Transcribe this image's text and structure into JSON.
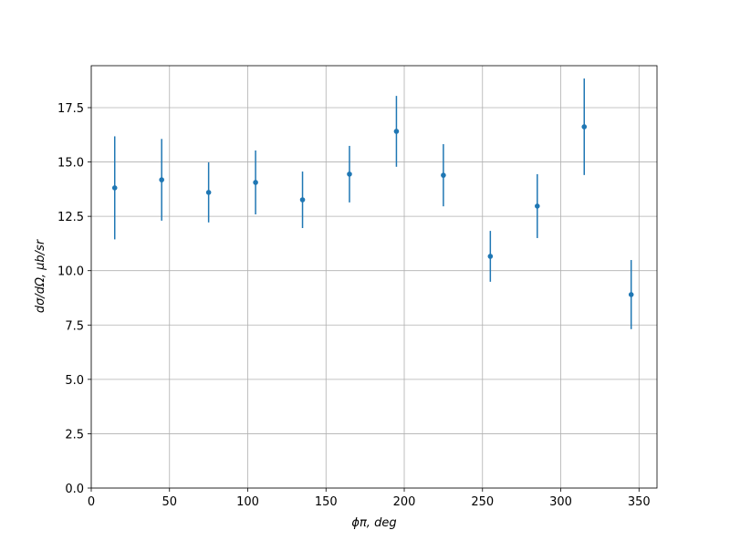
{
  "chart_data": {
    "type": "errorbar",
    "x_label": "ϕπ, deg",
    "y_label": "dσ/dΩ, μb/sr",
    "x": [
      15,
      45,
      75,
      105,
      135,
      165,
      195,
      225,
      255,
      285,
      315,
      345
    ],
    "values": [
      13.81,
      14.18,
      13.6,
      14.06,
      13.26,
      14.44,
      16.41,
      14.39,
      10.66,
      12.97,
      16.62,
      8.9
    ],
    "errors": [
      2.37,
      1.88,
      1.38,
      1.47,
      1.3,
      1.3,
      1.63,
      1.43,
      1.17,
      1.47,
      2.22,
      1.59
    ],
    "color": "#1f77b4",
    "xlim": [
      0,
      361.5
    ],
    "ylim": [
      0,
      19.43
    ],
    "xticks": [
      0,
      50,
      100,
      150,
      200,
      250,
      300,
      350
    ],
    "yticks": [
      {
        "value": 0,
        "label": "0.0"
      },
      2.5,
      {
        "value": 5,
        "label": "5.0"
      },
      7.5,
      {
        "value": 10,
        "label": "10.0"
      },
      12.5,
      {
        "value": 15,
        "label": "15.0"
      },
      17.5
    ],
    "grid": true
  }
}
